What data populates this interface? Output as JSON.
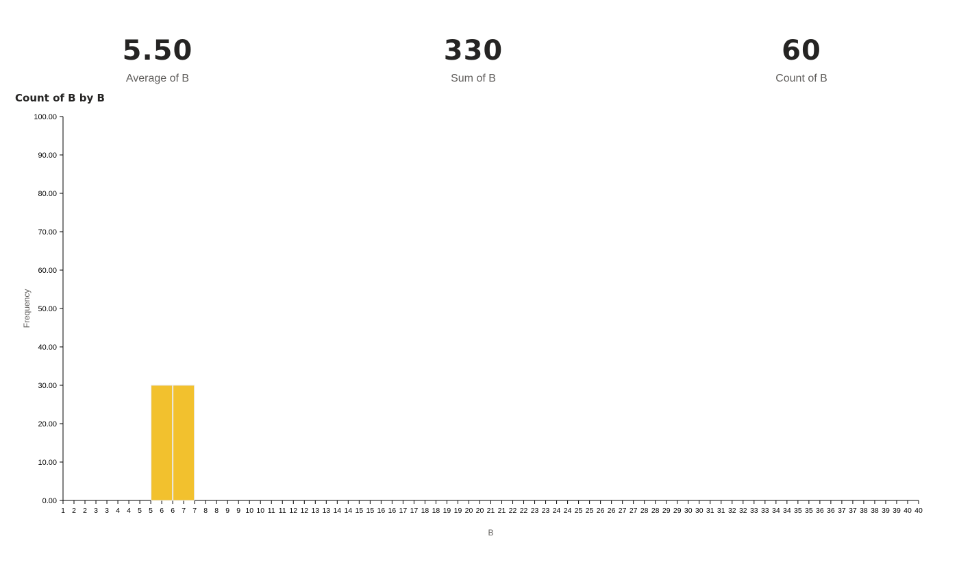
{
  "cards": {
    "average": {
      "value": "5.50",
      "label": "Average of B"
    },
    "sum": {
      "value": "330",
      "label": "Sum of B"
    },
    "count": {
      "value": "60",
      "label": "Count of B"
    }
  },
  "chart_data": {
    "type": "bar",
    "title": "Count of B by B",
    "xlabel": "B",
    "ylabel": "Frequency",
    "ylim": [
      0,
      100
    ],
    "yticks": [
      "0.00",
      "10.00",
      "20.00",
      "30.00",
      "40.00",
      "50.00",
      "60.00",
      "70.00",
      "80.00",
      "90.00",
      "100.00"
    ],
    "xticks": [
      "1",
      "2",
      "2",
      "3",
      "3",
      "4",
      "4",
      "5",
      "5",
      "6",
      "6",
      "7",
      "7",
      "8",
      "8",
      "9",
      "9",
      "10",
      "10",
      "11",
      "11",
      "12",
      "12",
      "13",
      "13",
      "14",
      "14",
      "15",
      "15",
      "16",
      "16",
      "17",
      "17",
      "18",
      "18",
      "19",
      "19",
      "20",
      "20",
      "21",
      "21",
      "22",
      "22",
      "23",
      "23",
      "24",
      "24",
      "25",
      "25",
      "26",
      "26",
      "27",
      "27",
      "28",
      "28",
      "29",
      "29",
      "30",
      "30",
      "31",
      "31",
      "32",
      "32",
      "33",
      "33",
      "34",
      "34",
      "35",
      "35",
      "36",
      "36",
      "37",
      "37",
      "38",
      "38",
      "39",
      "39",
      "40",
      "40"
    ],
    "bins": [
      {
        "start": 5,
        "end": 6,
        "value": 30
      },
      {
        "start": 6,
        "end": 7,
        "value": 30
      }
    ],
    "bar_color": "#F2C12E",
    "bar_edge_color": "#E8E8E8",
    "grid": false
  }
}
